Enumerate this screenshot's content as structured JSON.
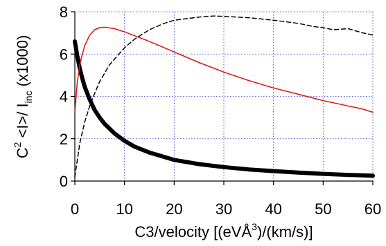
{
  "chart_data": {
    "type": "line",
    "title": "",
    "xlabel": "C3/velocity [(eVÅ3)/(km/s)]",
    "xlabel_parts": {
      "main": "C3/velocity [(eVÅ",
      "sup": "3",
      "tail": ")/(km/s)]"
    },
    "ylabel": "C2 <I>/ Iinc (x1000)",
    "ylabel_parts": {
      "c": "C",
      "sup": "2",
      "mid": " <I>/ I",
      "sub": "inc",
      "tail": "  (x1000)"
    },
    "xlim": [
      0,
      60
    ],
    "ylim": [
      0,
      8
    ],
    "xticks": [
      0,
      10,
      20,
      30,
      40,
      50,
      60
    ],
    "yticks": [
      0,
      2,
      4,
      6,
      8
    ],
    "grid": true,
    "series": [
      {
        "style": "thick-black-solid",
        "color": "#000000",
        "x": [
          0,
          0.5,
          1,
          1.5,
          2,
          3,
          4,
          5,
          6,
          8,
          10,
          12,
          15,
          20,
          25,
          30,
          35,
          40,
          45,
          50,
          55,
          60
        ],
        "y": [
          6.6,
          5.9,
          5.3,
          4.85,
          4.45,
          3.85,
          3.35,
          3.0,
          2.7,
          2.25,
          1.9,
          1.63,
          1.35,
          1.0,
          0.8,
          0.66,
          0.55,
          0.47,
          0.4,
          0.34,
          0.29,
          0.25
        ]
      },
      {
        "style": "thin-red-solid",
        "color": "#e01010",
        "x": [
          0,
          0.5,
          1,
          1.5,
          2,
          3,
          4,
          5,
          6,
          8,
          10,
          15,
          20,
          25,
          30,
          35,
          40,
          45,
          50,
          53,
          55,
          58,
          60
        ],
        "y": [
          3.25,
          4.7,
          5.5,
          6.0,
          6.4,
          6.9,
          7.15,
          7.25,
          7.27,
          7.2,
          7.05,
          6.6,
          6.1,
          5.6,
          5.15,
          4.75,
          4.4,
          4.1,
          3.8,
          3.65,
          3.55,
          3.4,
          3.25
        ]
      },
      {
        "style": "thin-black-dashed",
        "color": "#000000",
        "x": [
          0,
          1,
          2,
          3,
          4,
          5,
          7,
          10,
          12,
          15,
          18,
          20,
          25,
          28,
          30,
          35,
          40,
          45,
          48,
          50,
          52,
          55,
          58,
          60
        ],
        "y": [
          0.2,
          1.8,
          2.8,
          3.55,
          4.15,
          4.7,
          5.5,
          6.3,
          6.7,
          7.15,
          7.45,
          7.6,
          7.75,
          7.8,
          7.78,
          7.72,
          7.6,
          7.45,
          7.3,
          7.25,
          7.15,
          7.2,
          7.0,
          6.9
        ]
      }
    ]
  }
}
